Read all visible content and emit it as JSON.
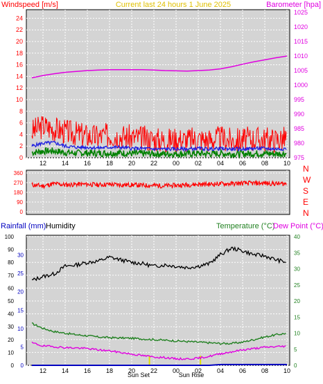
{
  "header": {
    "left_label": "Windspeed [m/s]",
    "center_label": "Current last 24 hours 1 June 2025",
    "right_label": "Barometer [hpa]"
  },
  "colors": {
    "wind": "#ff0000",
    "gust_avg": "#2020e0",
    "wind_low": "#008000",
    "barometer": "#e000e0",
    "title": "#e0c000",
    "humidity": "#000000",
    "temperature": "#208020",
    "dewpoint": "#e000e0",
    "rainfall": "#0000c0",
    "panel_bg": "#d4d4d4",
    "grid": "#ffffff"
  },
  "x_ticks": [
    "12",
    "14",
    "16",
    "18",
    "20",
    "22",
    "00",
    "02",
    "04",
    "06",
    "08",
    "10"
  ],
  "wind_panel": {
    "y_left_ticks": [
      "0",
      "2",
      "4",
      "6",
      "8",
      "10",
      "12",
      "14",
      "16",
      "18",
      "20",
      "22",
      "24"
    ],
    "y_right_ticks": [
      "975",
      "980",
      "985",
      "990",
      "995",
      "1000",
      "1005",
      "1010",
      "1015",
      "1020",
      "1025"
    ]
  },
  "direction_panel": {
    "y_ticks": [
      "0",
      "90",
      "180",
      "270",
      "360"
    ],
    "compass": [
      "N",
      "W",
      "S",
      "E",
      "N"
    ]
  },
  "lower_panel": {
    "rainfall_label": "Rainfall (mm)",
    "humidity_label": "Humidity",
    "temperature_label": "Temperature (°C)",
    "dewpoint_label": "Dew Point (°C)",
    "y_humidity_ticks": [
      "0",
      "10",
      "20",
      "30",
      "40",
      "50",
      "60",
      "70",
      "80",
      "90",
      "100"
    ],
    "y_rain_ticks": [
      "0",
      "5",
      "10",
      "15",
      "20",
      "25",
      "30"
    ],
    "y_temp_ticks": [
      "0",
      "5",
      "10",
      "15",
      "20",
      "25",
      "30",
      "35",
      "40"
    ],
    "sunset_label": "Sun Set",
    "sunrise_label": "Sun Rise"
  },
  "chart_data": [
    {
      "type": "line",
      "x": [
        "11",
        "12",
        "13",
        "14",
        "15",
        "16",
        "17",
        "18",
        "19",
        "20",
        "21",
        "22",
        "23",
        "00",
        "01",
        "02",
        "03",
        "04",
        "05",
        "06",
        "07",
        "08",
        "09",
        "10"
      ],
      "series": [
        {
          "name": "Windspeed [m/s]",
          "values": [
            4.5,
            5.5,
            5,
            4.5,
            4.2,
            3.8,
            3.6,
            4,
            3.8,
            3.5,
            3.4,
            3.2,
            3,
            3.2,
            3.1,
            3.3,
            3.1,
            3.4,
            3,
            3.1,
            3.3,
            3.2,
            3.1,
            3.4
          ]
        },
        {
          "name": "Average",
          "values": [
            2,
            2.5,
            2.6,
            2,
            1.8,
            1.8,
            1.7,
            1.8,
            1.8,
            1.6,
            1.6,
            1.5,
            1.5,
            1.5,
            1.5,
            1.6,
            1.5,
            1.6,
            1.5,
            1.5,
            1.6,
            1.6,
            1.5,
            1.6
          ]
        },
        {
          "name": "Barometer [hpa]",
          "values": [
            1002.5,
            1003.3,
            1003.9,
            1004.4,
            1004.7,
            1005,
            1005.2,
            1005.3,
            1005.3,
            1005.3,
            1005.3,
            1005.2,
            1005,
            1004.9,
            1004.8,
            1005,
            1005.2,
            1005.6,
            1006.3,
            1007.2,
            1008,
            1008.7,
            1009.4,
            1010
          ]
        }
      ],
      "ylim_left": [
        0,
        25
      ],
      "ylim_right": [
        975,
        1025
      ]
    },
    {
      "type": "line",
      "x": [
        "11",
        "12",
        "13",
        "14",
        "15",
        "16",
        "17",
        "18",
        "19",
        "20",
        "21",
        "22",
        "23",
        "00",
        "01",
        "02",
        "03",
        "04",
        "05",
        "06",
        "07",
        "08",
        "09",
        "10"
      ],
      "series": [
        {
          "name": "Wind direction",
          "values": [
            250,
            240,
            260,
            250,
            255,
            255,
            250,
            255,
            250,
            250,
            245,
            245,
            240,
            245,
            250,
            255,
            255,
            260,
            260,
            265,
            265,
            265,
            260,
            260
          ]
        }
      ],
      "ylim": [
        0,
        360
      ]
    },
    {
      "type": "line",
      "x": [
        "11",
        "12",
        "13",
        "14",
        "15",
        "16",
        "17",
        "18",
        "19",
        "20",
        "21",
        "22",
        "23",
        "00",
        "01",
        "02",
        "03",
        "04",
        "05",
        "06",
        "07",
        "08",
        "09",
        "10"
      ],
      "series": [
        {
          "name": "Humidity",
          "values": [
            66,
            69,
            71,
            77,
            78,
            80,
            81,
            84,
            82,
            80,
            79,
            77,
            78,
            77,
            76,
            77,
            79,
            86,
            91,
            89,
            86,
            85,
            82,
            80
          ]
        },
        {
          "name": "Temperature (°C)",
          "values": [
            13,
            11.5,
            10.5,
            10,
            9.5,
            9.2,
            8.8,
            8.6,
            8.5,
            8.4,
            8.2,
            8,
            7.8,
            7.6,
            7.4,
            7.2,
            7,
            6.8,
            6.8,
            7.2,
            8,
            8.8,
            9.5,
            10
          ]
        },
        {
          "name": "Dew Point (°C)",
          "values": [
            7,
            6,
            5.8,
            5.5,
            5.4,
            5.2,
            4.8,
            4.5,
            4,
            3.5,
            3,
            2.6,
            2.4,
            2,
            2,
            2.2,
            2.8,
            3.6,
            4.2,
            4.8,
            5.2,
            5.6,
            5.8,
            6
          ]
        },
        {
          "name": "Rainfall (mm)",
          "values": [
            0,
            0,
            0,
            0,
            0,
            0,
            0,
            0,
            0,
            0,
            0,
            0,
            0,
            0,
            0,
            0,
            0,
            0.2,
            0.2,
            0.2,
            0.2,
            0.2,
            0.2,
            0.2
          ]
        }
      ],
      "ylim_humidity": [
        0,
        100
      ],
      "ylim_rain": [
        0,
        35
      ],
      "ylim_temp": [
        0,
        40
      ]
    }
  ]
}
